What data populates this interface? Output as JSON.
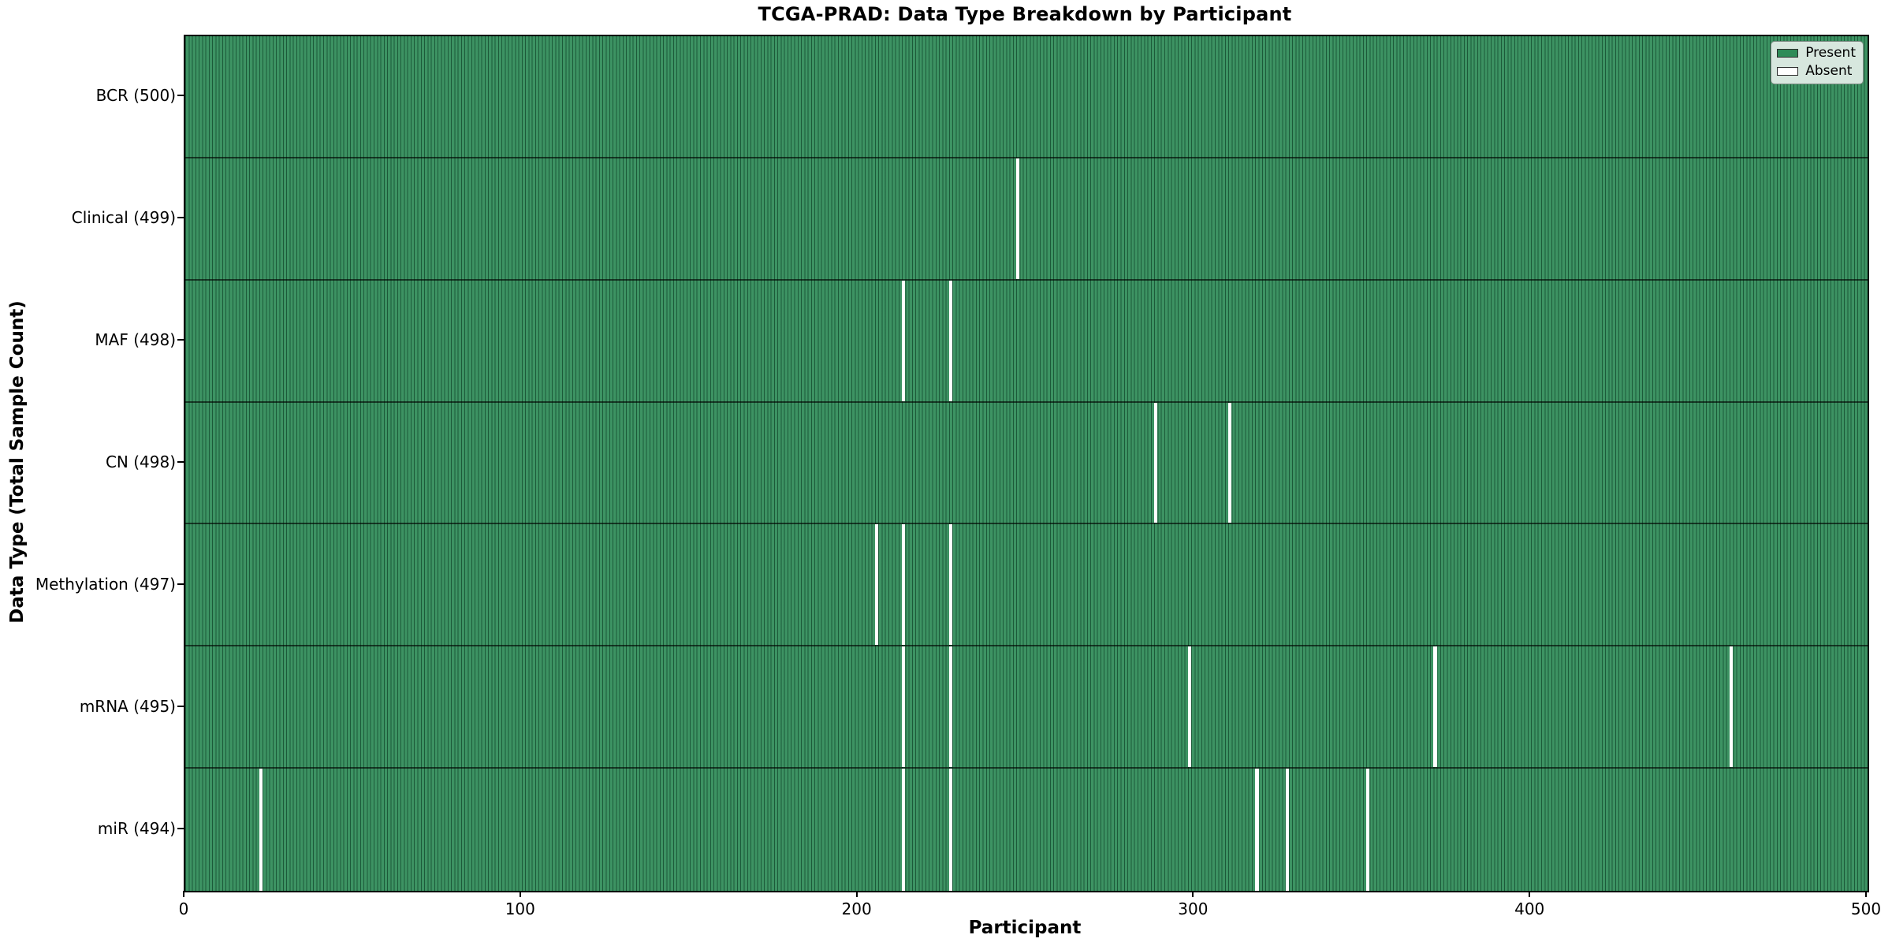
{
  "chart_data": {
    "type": "heatmap",
    "title": "TCGA-PRAD: Data Type Breakdown by Participant",
    "xlabel": "Participant",
    "ylabel": "Data Type (Total Sample Count)",
    "xlim": [
      0,
      500
    ],
    "n_participants": 500,
    "x_ticks": [
      0,
      100,
      200,
      300,
      400,
      500
    ],
    "grid": false,
    "legend_position": "upper right",
    "colors": {
      "present": "#2e8b57",
      "absent": "#ffffff",
      "bar_edge": "#0a281a"
    },
    "legend": [
      {
        "label": "Present",
        "color": "#2e8b57"
      },
      {
        "label": "Absent",
        "color": "#ffffff"
      }
    ],
    "rows": [
      {
        "label": "BCR (500)",
        "data_type": "BCR",
        "total": 500,
        "absent_participants": []
      },
      {
        "label": "Clinical (499)",
        "data_type": "Clinical",
        "total": 499,
        "absent_participants": [
          247
        ]
      },
      {
        "label": "MAF (498)",
        "data_type": "MAF",
        "total": 498,
        "absent_participants": [
          213,
          227
        ]
      },
      {
        "label": "CN (498)",
        "data_type": "CN",
        "total": 498,
        "absent_participants": [
          288,
          310
        ]
      },
      {
        "label": "Methylation (497)",
        "data_type": "Methylation",
        "total": 497,
        "absent_participants": [
          205,
          213,
          227
        ]
      },
      {
        "label": "mRNA (495)",
        "data_type": "mRNA",
        "total": 495,
        "absent_participants": [
          213,
          227,
          298,
          371,
          459
        ]
      },
      {
        "label": "miR (494)",
        "data_type": "miR",
        "total": 494,
        "absent_participants": [
          22,
          213,
          227,
          318,
          327,
          351
        ]
      }
    ]
  }
}
